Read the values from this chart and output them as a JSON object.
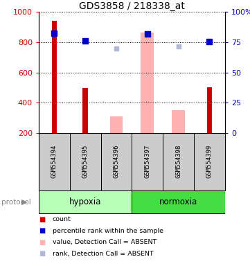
{
  "title": "GDS3858 / 218338_at",
  "samples": [
    "GSM554394",
    "GSM554395",
    "GSM554396",
    "GSM554397",
    "GSM554398",
    "GSM554399"
  ],
  "group_labels": [
    "hypoxia",
    "normoxia"
  ],
  "ylim_left": [
    200,
    1000
  ],
  "ylim_right": [
    0,
    100
  ],
  "count_values": [
    940,
    498,
    null,
    null,
    null,
    503
  ],
  "count_color": "#cc0000",
  "percentile_values": [
    860,
    808,
    null,
    855,
    null,
    806
  ],
  "percentile_color": "#0000cc",
  "value_absent_values": [
    null,
    null,
    312,
    865,
    350,
    null
  ],
  "value_absent_color": "#ffb0b0",
  "rank_absent_values": [
    null,
    null,
    757,
    null,
    773,
    null
  ],
  "rank_absent_color": "#b0b8d8",
  "x_positions": [
    0,
    1,
    2,
    3,
    4,
    5
  ],
  "hypoxia_color": "#b8ffb8",
  "normoxia_color": "#44dd44",
  "label_bg_color": "#cccccc",
  "protocol_label": "protocol",
  "legend_items": [
    {
      "label": "count",
      "color": "#cc0000"
    },
    {
      "label": "percentile rank within the sample",
      "color": "#0000cc"
    },
    {
      "label": "value, Detection Call = ABSENT",
      "color": "#ffb0b0"
    },
    {
      "label": "rank, Detection Call = ABSENT",
      "color": "#b0b8d8"
    }
  ]
}
